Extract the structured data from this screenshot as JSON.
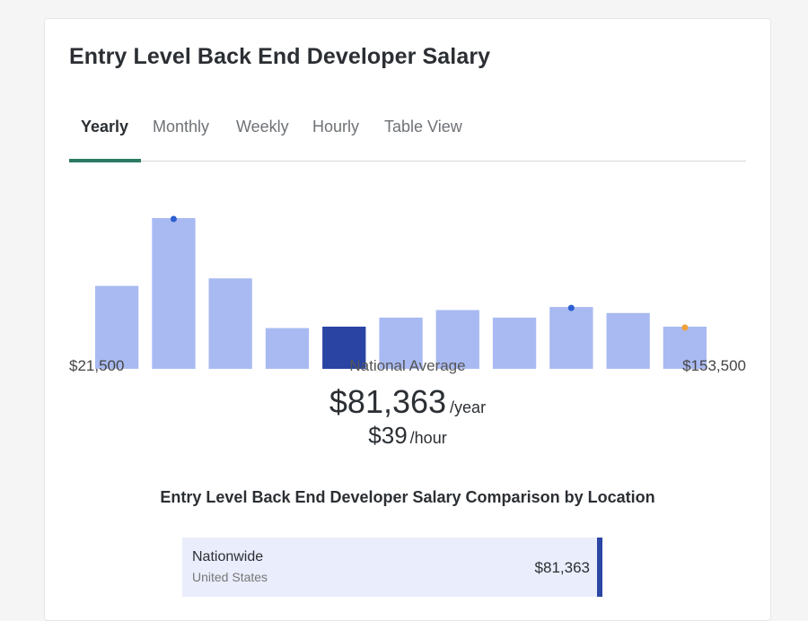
{
  "page": {
    "title": "Entry Level Back End Developer Salary"
  },
  "tabs": [
    {
      "label": "Yearly",
      "active": true
    },
    {
      "label": "Monthly",
      "active": false
    },
    {
      "label": "Weekly",
      "active": false
    },
    {
      "label": "Hourly",
      "active": false
    },
    {
      "label": "Table View",
      "active": false
    }
  ],
  "chart_data": {
    "type": "bar",
    "bins": 11,
    "relative_heights": [
      0.55,
      1.0,
      0.6,
      0.27,
      0.28,
      0.34,
      0.39,
      0.34,
      0.41,
      0.37,
      0.28
    ],
    "highlighted_bin": 4,
    "markers": [
      {
        "bin": 1,
        "color": "#2d5fd1"
      },
      {
        "bin": 8,
        "color": "#2d5fd1"
      },
      {
        "bin": 10,
        "color": "#f0a23c"
      }
    ],
    "bar_color": "#a9baf2",
    "highlight_color": "#2944a3",
    "x_min_label": "$21,500",
    "x_max_label": "$153,500",
    "x_mid_label": "National Average"
  },
  "salary": {
    "yearly_amount": "$81,363",
    "yearly_unit": "/year",
    "hourly_amount": "$39",
    "hourly_unit": "/hour"
  },
  "comparison": {
    "title": "Entry Level Back End Developer Salary Comparison by Location",
    "rows": [
      {
        "name": "Nationwide",
        "country": "United States",
        "value": "$81,363"
      }
    ]
  }
}
